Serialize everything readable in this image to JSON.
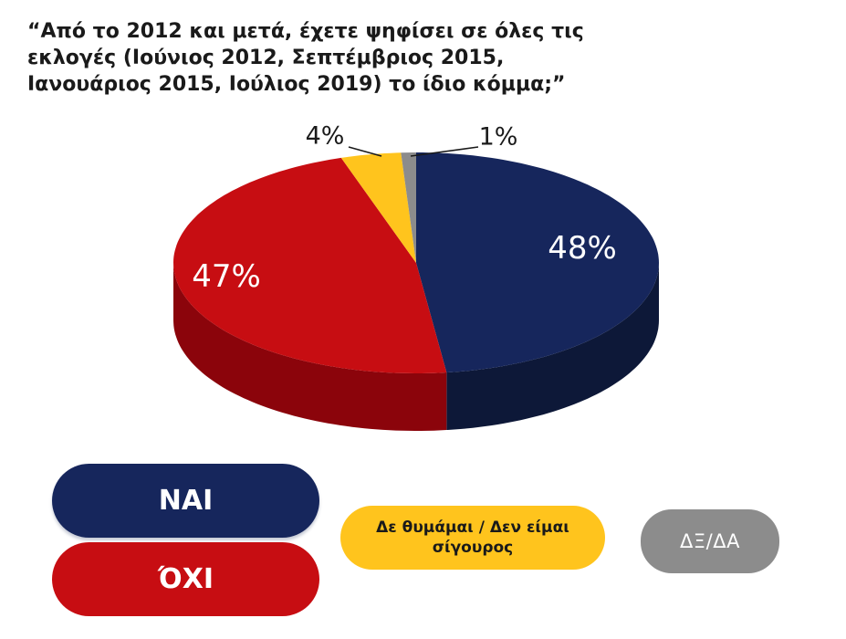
{
  "header": {
    "title_lines": [
      "“Από το 2012 και μετά, έχετε ψηφίσει σε όλες τις",
      "εκλογές (Ιούνιος 2012, Σεπτέμβριος 2015,",
      "Ιανουάριος 2015, Ιούλιος 2019) το ίδιο κόμμα;”"
    ]
  },
  "chart_data": {
    "type": "pie",
    "style": "3d",
    "title": "“Από το 2012 και μετά, έχετε ψηφίσει σε όλες τις εκλογές (Ιούνιος 2012, Σεπτέμβριος 2015, Ιανουάριος 2015, Ιούλιος 2019) το ίδιο κόμμα;”",
    "unit": "%",
    "start_angle_deg": 0,
    "direction": "clockwise",
    "legend_position": "bottom",
    "slices": [
      {
        "label": "ΝΑΙ",
        "value": 48,
        "display": "48%",
        "color": "#16265C",
        "side_color": "#0D1838",
        "label_color": "#FFFFFF"
      },
      {
        "label": "ΌΧΙ",
        "value": 47,
        "display": "47%",
        "color": "#C70D12",
        "side_color": "#8B040B",
        "label_color": "#FFFFFF"
      },
      {
        "label": "Δε θυμάμαι / Δεν είμαι σίγουρος",
        "value": 4,
        "display": "4%",
        "color": "#FFC41D",
        "side_color": "#BC8F0E",
        "label_color": "#1A1A1A"
      },
      {
        "label": "ΔΞ/ΔΑ",
        "value": 1,
        "display": "1%",
        "color": "#8C8C8C",
        "side_color": "#5F5F5F",
        "label_color": "#1A1A1A"
      }
    ]
  },
  "legend": {
    "yes": {
      "label": "ΝΑΙ",
      "color": "#16265C",
      "text_color": "#FFFFFF"
    },
    "no": {
      "label": "ΌΧΙ",
      "color": "#C70D12",
      "text_color": "#FFFFFF"
    },
    "dont_remember": {
      "label": "Δε θυμάμαι / Δεν είμαι σίγουρος",
      "label_lines": [
        "Δε θυμάμαι / Δεν είμαι",
        "σίγουρος"
      ],
      "color": "#FFC41D",
      "text_color": "#1A1A1A"
    },
    "dk_na": {
      "label": "ΔΞ/ΔΑ",
      "color": "#8C8C8C",
      "text_color": "#FFFFFF"
    }
  }
}
